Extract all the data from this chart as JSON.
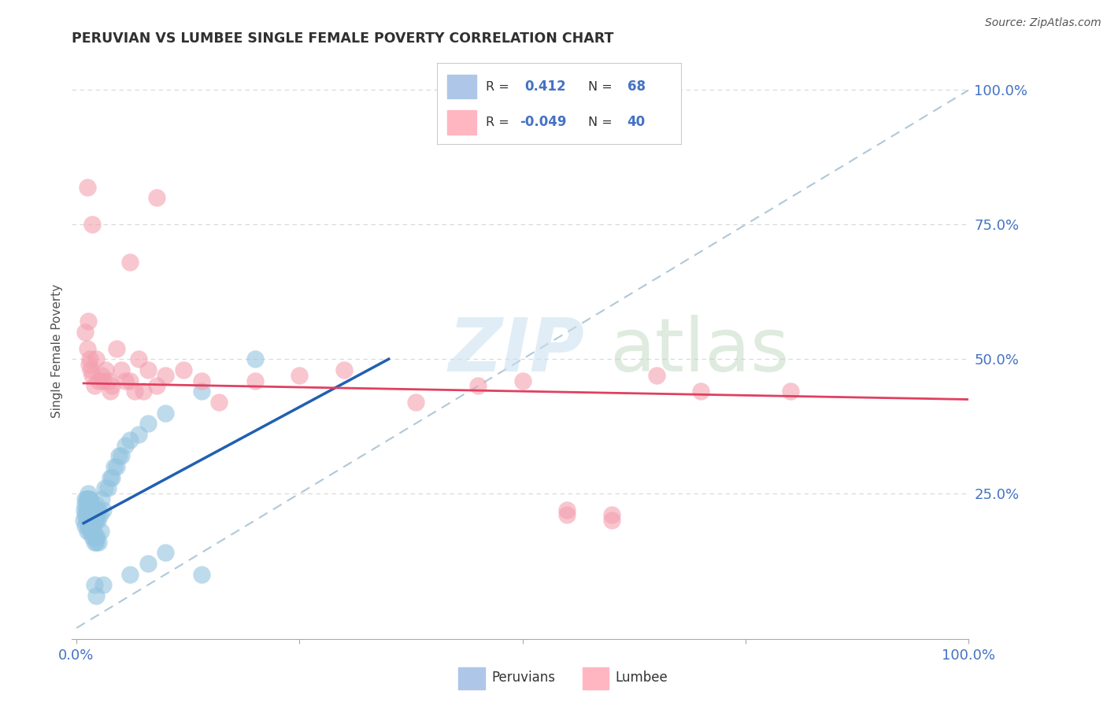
{
  "title": "PERUVIAN VS LUMBEE SINGLE FEMALE POVERTY CORRELATION CHART",
  "source": "Source: ZipAtlas.com",
  "ylabel": "Single Female Poverty",
  "xlim": [
    -0.005,
    1.0
  ],
  "ylim": [
    -0.02,
    1.05
  ],
  "peruvian_color": "#93c4e0",
  "lumbee_color": "#f4a0b0",
  "blue_line_color": "#2060b0",
  "pink_line_color": "#e04060",
  "ref_line_color": "#b0c8d8",
  "background_color": "#ffffff",
  "legend_peruvian_color": "#aec6e8",
  "legend_lumbee_color": "#ffb6c1",
  "grid_color": "#d8d8d8",
  "title_color": "#303030",
  "tick_color": "#4472c4",
  "ylabel_color": "#505050",
  "source_color": "#555555",
  "peruvians_x": [
    0.008,
    0.009,
    0.01,
    0.01,
    0.01,
    0.01,
    0.011,
    0.011,
    0.011,
    0.012,
    0.012,
    0.012,
    0.012,
    0.013,
    0.013,
    0.013,
    0.013,
    0.014,
    0.014,
    0.014,
    0.015,
    0.015,
    0.015,
    0.015,
    0.016,
    0.016,
    0.016,
    0.017,
    0.017,
    0.017,
    0.018,
    0.018,
    0.018,
    0.018,
    0.019,
    0.019,
    0.02,
    0.02,
    0.02,
    0.021,
    0.021,
    0.022,
    0.022,
    0.022,
    0.023,
    0.023,
    0.024,
    0.025,
    0.025,
    0.026,
    0.027,
    0.028,
    0.03,
    0.032,
    0.035,
    0.038,
    0.04,
    0.042,
    0.045,
    0.048,
    0.05,
    0.055,
    0.06,
    0.07,
    0.08,
    0.1,
    0.14,
    0.2
  ],
  "peruvians_y": [
    0.2,
    0.22,
    0.19,
    0.21,
    0.23,
    0.24,
    0.2,
    0.22,
    0.24,
    0.18,
    0.2,
    0.22,
    0.24,
    0.19,
    0.21,
    0.23,
    0.25,
    0.2,
    0.22,
    0.24,
    0.18,
    0.2,
    0.22,
    0.24,
    0.19,
    0.21,
    0.23,
    0.18,
    0.2,
    0.22,
    0.17,
    0.19,
    0.21,
    0.23,
    0.18,
    0.2,
    0.16,
    0.2,
    0.22,
    0.17,
    0.21,
    0.16,
    0.2,
    0.23,
    0.17,
    0.21,
    0.2,
    0.16,
    0.22,
    0.21,
    0.18,
    0.24,
    0.22,
    0.26,
    0.26,
    0.28,
    0.28,
    0.3,
    0.3,
    0.32,
    0.32,
    0.34,
    0.35,
    0.36,
    0.38,
    0.4,
    0.44,
    0.5
  ],
  "lumbees_x": [
    0.01,
    0.012,
    0.013,
    0.014,
    0.015,
    0.016,
    0.018,
    0.02,
    0.022,
    0.025,
    0.028,
    0.03,
    0.033,
    0.036,
    0.038,
    0.04,
    0.045,
    0.05,
    0.055,
    0.06,
    0.065,
    0.07,
    0.075,
    0.08,
    0.09,
    0.1,
    0.12,
    0.14,
    0.16,
    0.2,
    0.25,
    0.3,
    0.38,
    0.45,
    0.5,
    0.55,
    0.6,
    0.65,
    0.7,
    0.8
  ],
  "lumbees_y": [
    0.55,
    0.52,
    0.57,
    0.49,
    0.5,
    0.48,
    0.47,
    0.45,
    0.5,
    0.46,
    0.47,
    0.46,
    0.48,
    0.46,
    0.44,
    0.45,
    0.52,
    0.48,
    0.46,
    0.46,
    0.44,
    0.5,
    0.44,
    0.48,
    0.45,
    0.47,
    0.48,
    0.46,
    0.42,
    0.46,
    0.47,
    0.48,
    0.42,
    0.45,
    0.46,
    0.22,
    0.21,
    0.47,
    0.44,
    0.44
  ],
  "blue_line_x": [
    0.008,
    0.35
  ],
  "blue_line_y": [
    0.195,
    0.5
  ],
  "pink_line_x": [
    0.008,
    1.0
  ],
  "pink_line_y": [
    0.455,
    0.425
  ],
  "lumbee_outliers_x": [
    0.012,
    0.018,
    0.06,
    0.09,
    0.55,
    0.6
  ],
  "lumbee_outliers_y": [
    0.82,
    0.75,
    0.68,
    0.8,
    0.21,
    0.2
  ],
  "blue_outliers_x": [
    0.02,
    0.022,
    0.03,
    0.06,
    0.08,
    0.1,
    0.14
  ],
  "blue_outliers_y": [
    0.08,
    0.06,
    0.08,
    0.1,
    0.12,
    0.14,
    0.1
  ]
}
